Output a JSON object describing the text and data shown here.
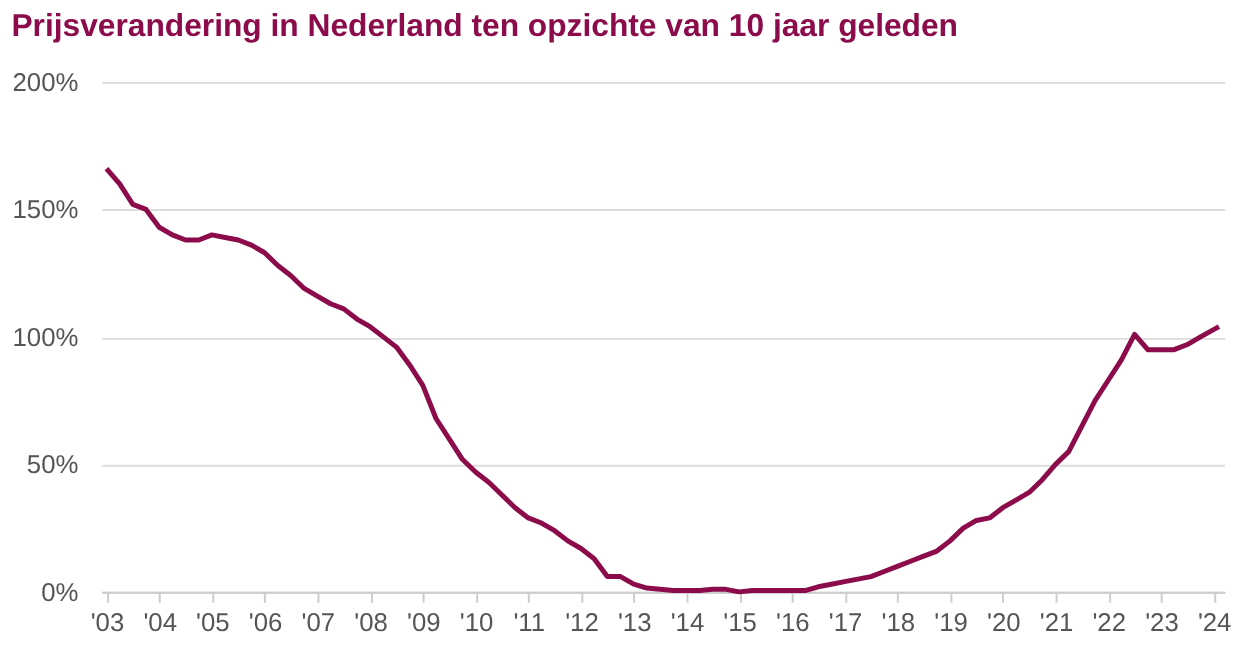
{
  "chart_data": {
    "type": "line",
    "title": "Prijsverandering in Nederland ten opzichte van 10 jaar geleden",
    "x": [
      2003.0,
      2003.25,
      2003.5,
      2003.75,
      2004.0,
      2004.25,
      2004.5,
      2004.75,
      2005.0,
      2005.25,
      2005.5,
      2005.75,
      2006.0,
      2006.25,
      2006.5,
      2006.75,
      2007.0,
      2007.25,
      2007.5,
      2007.75,
      2008.0,
      2008.25,
      2008.5,
      2008.75,
      2009.0,
      2009.25,
      2009.5,
      2009.75,
      2010.0,
      2010.25,
      2010.5,
      2010.75,
      2011.0,
      2011.25,
      2011.5,
      2011.75,
      2012.0,
      2012.25,
      2012.5,
      2012.75,
      2013.0,
      2013.25,
      2013.5,
      2013.75,
      2014.0,
      2014.25,
      2014.5,
      2014.75,
      2015.0,
      2015.25,
      2015.5,
      2015.75,
      2016.0,
      2016.25,
      2016.5,
      2016.75,
      2017.0,
      2017.25,
      2017.5,
      2017.75,
      2018.0,
      2018.25,
      2018.5,
      2018.75,
      2019.0,
      2019.25,
      2019.5,
      2019.75,
      2020.0,
      2020.25,
      2020.5,
      2020.75,
      2021.0,
      2021.25,
      2021.5,
      2021.75,
      2022.0,
      2022.25,
      2022.5,
      2022.75,
      2023.0,
      2023.25,
      2023.5,
      2023.75,
      2024.1
    ],
    "series": [
      {
        "color": "#8b0b4b",
        "values": [
          166,
          160,
          152,
          150,
          143,
          140,
          138,
          138,
          140,
          139,
          138,
          136,
          133,
          128,
          124,
          119,
          116,
          113,
          111,
          107,
          104,
          100,
          96,
          89,
          81,
          68,
          60,
          52,
          47,
          43,
          38,
          33,
          29,
          27,
          24,
          20,
          17,
          13,
          6,
          6,
          3,
          1.5,
          1,
          0.5,
          0.5,
          0.5,
          1,
          1,
          0,
          0.5,
          0.5,
          0.5,
          0.5,
          0.5,
          2,
          3,
          4,
          5,
          6,
          8,
          10,
          12,
          14,
          16,
          20,
          25,
          28,
          29,
          33,
          36,
          39,
          44,
          50,
          55,
          65,
          75,
          83,
          91,
          101,
          95,
          95,
          95,
          97,
          100,
          104
        ]
      }
    ],
    "xlim": [
      2002.9,
      2024.2
    ],
    "xticks": [
      {
        "value": 2003,
        "label": "'03"
      },
      {
        "value": 2004,
        "label": "'04"
      },
      {
        "value": 2005,
        "label": "'05"
      },
      {
        "value": 2006,
        "label": "'06"
      },
      {
        "value": 2007,
        "label": "'07"
      },
      {
        "value": 2008,
        "label": "'08"
      },
      {
        "value": 2009,
        "label": "'09"
      },
      {
        "value": 2010,
        "label": "'10"
      },
      {
        "value": 2011,
        "label": "'11"
      },
      {
        "value": 2012,
        "label": "'12"
      },
      {
        "value": 2013,
        "label": "'13"
      },
      {
        "value": 2014,
        "label": "'14"
      },
      {
        "value": 2015,
        "label": "'15"
      },
      {
        "value": 2016,
        "label": "'16"
      },
      {
        "value": 2017,
        "label": "'17"
      },
      {
        "value": 2018,
        "label": "'18"
      },
      {
        "value": 2019,
        "label": "'19"
      },
      {
        "value": 2020,
        "label": "'20"
      },
      {
        "value": 2021,
        "label": "'21"
      },
      {
        "value": 2022,
        "label": "'22"
      },
      {
        "value": 2023,
        "label": "'23"
      },
      {
        "value": 2024,
        "label": "'24"
      }
    ],
    "ylim": [
      0,
      200
    ],
    "yticks": [
      {
        "value": 0,
        "label": "0%"
      },
      {
        "value": 50,
        "label": "50%"
      },
      {
        "value": 100,
        "label": "100%"
      },
      {
        "value": 150,
        "label": "150%"
      },
      {
        "value": 200,
        "label": "200%"
      }
    ],
    "grid": "y",
    "marker": "none",
    "line_style": "solid"
  }
}
